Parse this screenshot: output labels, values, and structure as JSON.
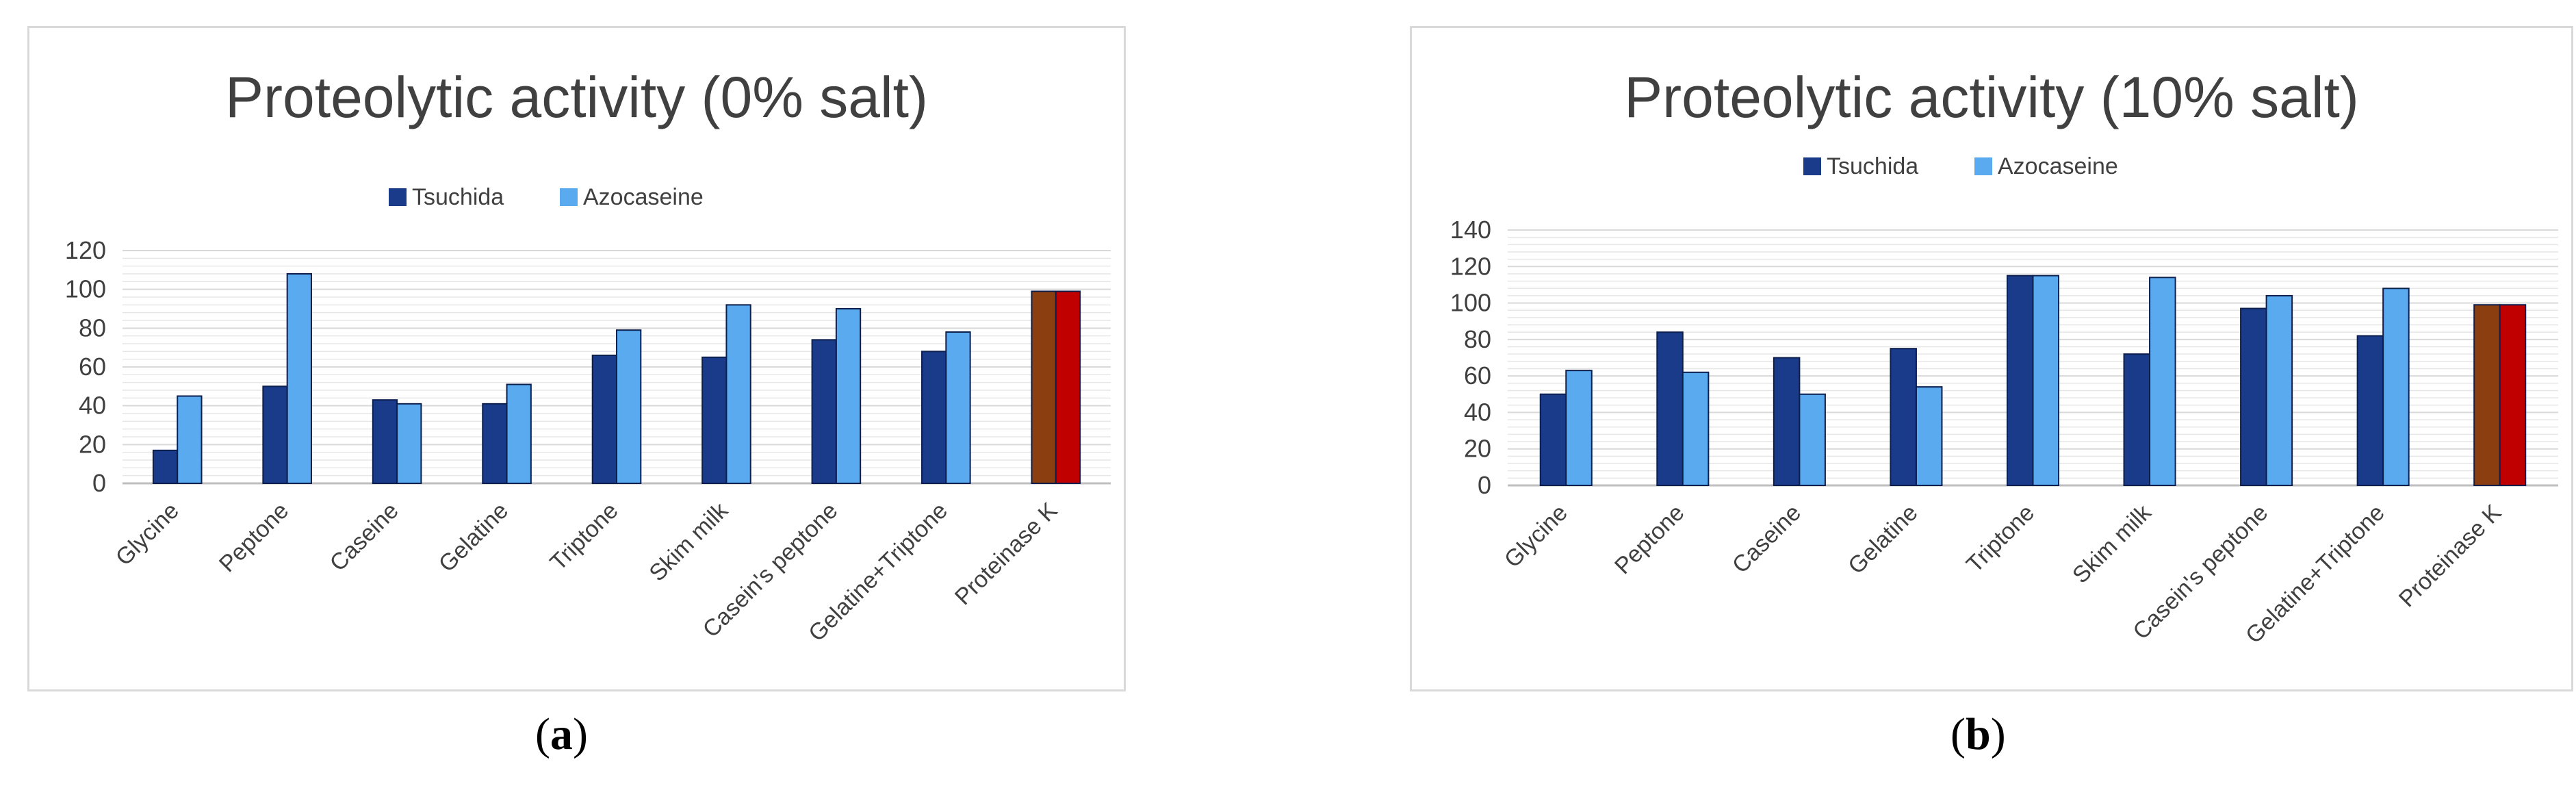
{
  "panels": [
    {
      "caption_open": "(",
      "caption_letter": "a",
      "caption_close": ")"
    },
    {
      "caption_open": "(",
      "caption_letter": "b",
      "caption_close": ")"
    }
  ],
  "colors": {
    "tsuchida": "#1a3a8a",
    "azocaseine": "#5aaaf0",
    "proteinase_tsuchida": "#8b3e10",
    "proteinase_azocaseine": "#c00000",
    "gridline": "#d9d9d9",
    "text": "#404040"
  },
  "chart_data": [
    {
      "type": "bar",
      "title": "Proteolytic activity (0% salt)",
      "categories": [
        "Glycine",
        "Peptone",
        "Caseine",
        "Gelatine",
        "Triptone",
        "Skim milk",
        "Casein's peptone",
        "Gelatine+Triptone",
        "Proteinase K"
      ],
      "series": [
        {
          "name": "Tsuchida",
          "values": [
            17,
            50,
            43,
            41,
            66,
            65,
            74,
            68,
            99
          ]
        },
        {
          "name": "Azocaseine",
          "values": [
            45,
            108,
            41,
            51,
            79,
            92,
            90,
            78,
            99
          ]
        }
      ],
      "ylim": [
        0,
        120
      ],
      "yticks": [
        0,
        20,
        40,
        60,
        80,
        100,
        120
      ],
      "legend": "top-center",
      "grid": true
    },
    {
      "type": "bar",
      "title": "Proteolytic activity (10% salt)",
      "categories": [
        "Glycine",
        "Peptone",
        "Caseine",
        "Gelatine",
        "Triptone",
        "Skim milk",
        "Casein's peptone",
        "Gelatine+Triptone",
        "Proteinase K"
      ],
      "series": [
        {
          "name": "Tsuchida",
          "values": [
            50,
            84,
            70,
            75,
            115,
            72,
            97,
            82,
            99
          ]
        },
        {
          "name": "Azocaseine",
          "values": [
            63,
            62,
            50,
            54,
            115,
            114,
            104,
            108,
            99
          ]
        }
      ],
      "ylim": [
        0,
        140
      ],
      "yticks": [
        0,
        20,
        40,
        60,
        80,
        100,
        120,
        140
      ],
      "legend": "top-center",
      "grid": true
    }
  ]
}
